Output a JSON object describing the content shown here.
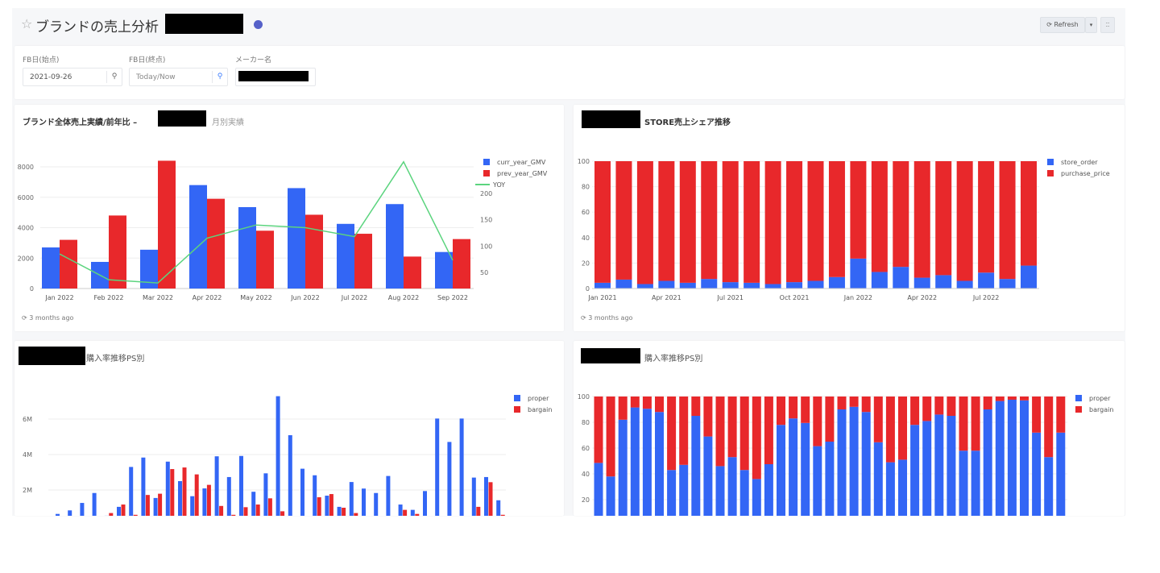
{
  "header": {
    "title": "ブランドの売上分析",
    "star_icon": "star-outline-icon",
    "refresh_label": "Refresh",
    "refresh_icon": "refresh-icon",
    "dropdown_icon": "caret-down-icon",
    "fullscreen_icon": "grid-icon"
  },
  "filters": [
    {
      "label": "FB日(始点)",
      "value": "2021-09-26"
    },
    {
      "label": "FB日(終点)",
      "value": "Today/Now"
    },
    {
      "label": "メーカー名",
      "value": ""
    }
  ],
  "widgets": [
    {
      "title": "ブランド全体売上実績/前年比 –",
      "subtitle": "月別実績",
      "updated": "3 months ago"
    },
    {
      "title": "STORE売上シェア推移",
      "updated": "3 months ago"
    },
    {
      "title": "購入率推移PS別"
    },
    {
      "title": "購入率推移PS別"
    }
  ],
  "colors": {
    "blue": "#3366f5",
    "red": "#e8282b",
    "green": "#5bd47e"
  },
  "chart_data": [
    {
      "type": "bar",
      "categories": [
        "Jan 2022",
        "Feb 2022",
        "Mar 2022",
        "Apr 2022",
        "May 2022",
        "Jun 2022",
        "Jul 2022",
        "Aug 2022",
        "Sep 2022"
      ],
      "series": [
        {
          "name": "curr_year_GMV",
          "type": "bar",
          "values": [
            2700,
            1750,
            2550,
            6800,
            5350,
            6600,
            4250,
            5550,
            2400
          ]
        },
        {
          "name": "prev_year_GMV",
          "type": "bar",
          "values": [
            3200,
            4800,
            8400,
            5900,
            3800,
            4850,
            3600,
            2100,
            3250
          ]
        },
        {
          "name": "YOY",
          "type": "line",
          "axis": "right",
          "values": [
            85,
            36,
            30,
            115,
            140,
            135,
            118,
            260,
            73
          ]
        }
      ],
      "yticks": [
        0,
        2000,
        4000,
        6000,
        8000
      ],
      "y2ticks": [
        50,
        100,
        150,
        200
      ],
      "ylim": [
        0,
        8400
      ],
      "y2lim": [
        0,
        265
      ],
      "legend": "right",
      "grid": true
    },
    {
      "type": "bar",
      "stacked": true,
      "categories": [
        "Jan 2021",
        "Feb 2021",
        "Mar 2021",
        "Apr 2021",
        "May 2021",
        "Jun 2021",
        "Jul 2021",
        "Aug 2021",
        "Sep 2021",
        "Oct 2021",
        "Nov 2021",
        "Dec 2021",
        "Jan 2022",
        "Feb 2022",
        "Mar 2022",
        "Apr 2022",
        "May 2022",
        "Jun 2022",
        "Jul 2022",
        "Aug 2022",
        "Sep 2022"
      ],
      "xticklabels": [
        "Jan 2021",
        "Apr 2021",
        "Jul 2021",
        "Oct 2021",
        "Jan 2022",
        "Apr 2022",
        "Jul 2022"
      ],
      "series": [
        {
          "name": "store_order",
          "values": [
            4.5,
            7,
            3.5,
            6,
            4.5,
            7.5,
            5,
            4.5,
            3.5,
            5,
            6,
            9,
            23.5,
            13,
            17,
            8.5,
            10.5,
            6,
            12.5,
            7.5,
            18
          ]
        },
        {
          "name": "purchase_price",
          "values": [
            95.5,
            93,
            96.5,
            94,
            95.5,
            92.5,
            95,
            95.5,
            96.5,
            95,
            94,
            91,
            76.5,
            87,
            83,
            91.5,
            89.5,
            94,
            87.5,
            92.5,
            82
          ]
        }
      ],
      "yticks": [
        0,
        20,
        40,
        60,
        80,
        100
      ],
      "ylim": [
        0,
        100
      ],
      "legend": "right",
      "grid": true
    },
    {
      "type": "bar",
      "series": [
        {
          "name": "proper",
          "values": [
            0.65,
            0.85,
            1.27,
            1.83,
            0.55,
            1.05,
            3.3,
            3.83,
            1.55,
            3.6,
            2.5,
            1.65,
            2.09,
            3.9,
            2.73,
            3.92,
            1.9,
            2.94,
            7.29,
            5.09,
            3.2,
            2.83,
            1.68,
            1.05,
            2.45,
            2.08,
            1.83,
            2.79,
            1.18,
            0.88,
            1.94,
            6.03,
            4.71,
            6.03,
            2.7,
            2.73,
            1.42
          ]
        },
        {
          "name": "bargain",
          "values": [
            0,
            0,
            0,
            0,
            0.7,
            1.18,
            0.6,
            1.72,
            1.79,
            3.18,
            3.27,
            2.88,
            2.29,
            1.1,
            0.6,
            1.03,
            1.18,
            1.53,
            0.8,
            0,
            0,
            1.59,
            1.77,
            1.0,
            0.7,
            0,
            0,
            0,
            0.88,
            0.65,
            0,
            0,
            0,
            0,
            1.05,
            2.44,
            0.6
          ]
        }
      ],
      "yticks": [
        "2M",
        "4M",
        "6M"
      ],
      "ytick_values": [
        2000000,
        4000000,
        6000000
      ],
      "unit": "M",
      "legend": "right",
      "grid": true
    },
    {
      "type": "bar",
      "stacked": true,
      "series": [
        {
          "name": "proper",
          "values": [
            48.5,
            38,
            82,
            91.5,
            90.5,
            88,
            43,
            47,
            85,
            69,
            46,
            53,
            43,
            36,
            47.5,
            78,
            83,
            79.5,
            61.5,
            65,
            90,
            92,
            88,
            64.5,
            49,
            51,
            78,
            81,
            86,
            85,
            58,
            58,
            90,
            96.5,
            97.5,
            97,
            72,
            53,
            72
          ]
        },
        {
          "name": "bargain",
          "values": [
            51.5,
            62,
            18,
            8.5,
            9.5,
            12,
            57,
            53,
            15,
            31,
            54,
            47,
            57,
            64,
            52.5,
            22,
            17,
            20.5,
            38.5,
            35,
            10,
            8,
            12,
            35.5,
            51,
            49,
            22,
            19,
            14,
            15,
            42,
            42,
            10,
            3.5,
            2.5,
            3,
            28,
            47,
            28
          ]
        }
      ],
      "yticks": [
        20,
        40,
        60,
        80,
        100
      ],
      "ylim": [
        0,
        100
      ],
      "legend": "right",
      "grid": true
    }
  ]
}
